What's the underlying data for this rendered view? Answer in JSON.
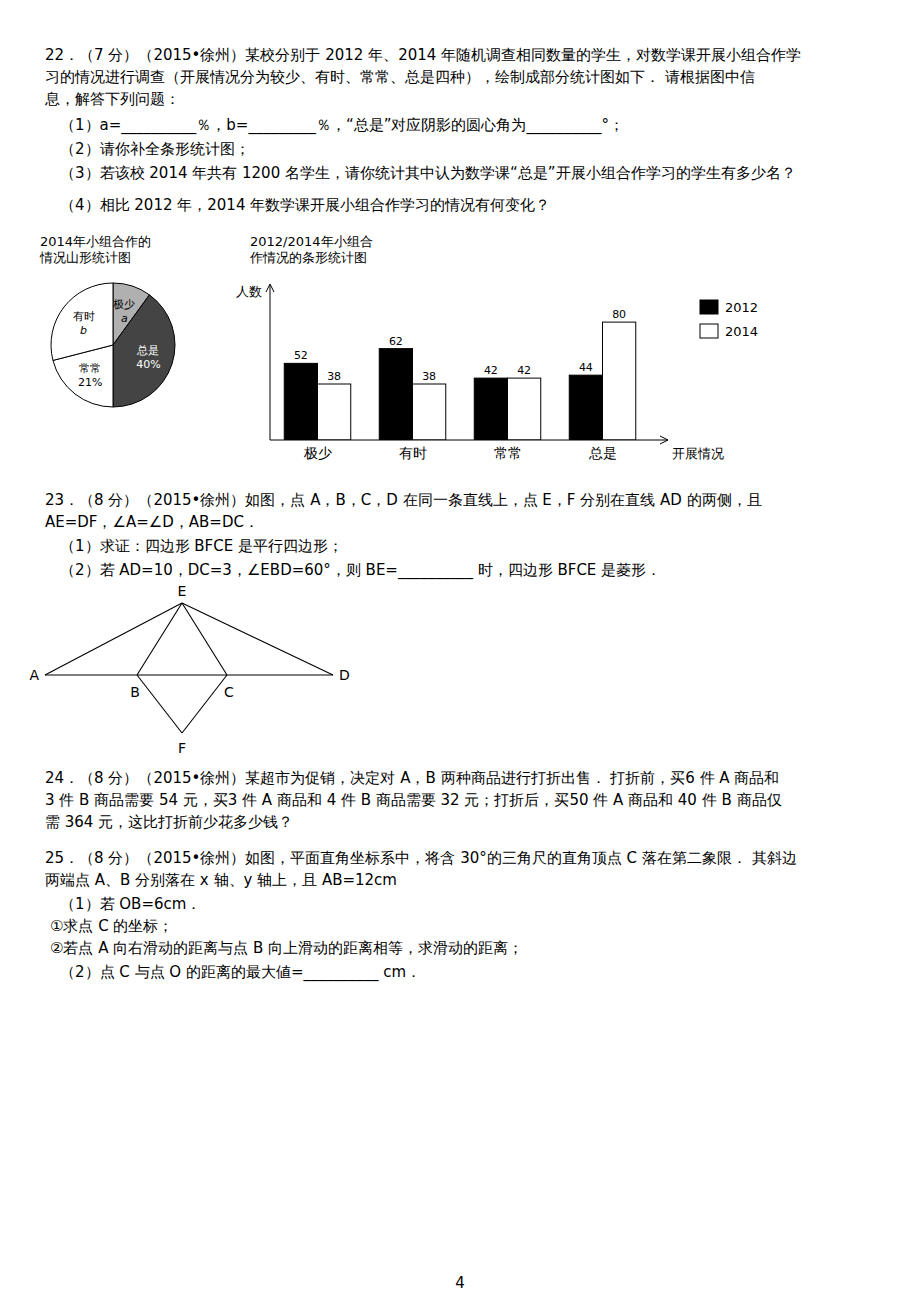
{
  "page_text": {
    "q22": [
      "22．（7 分）（2015•徐州）某校分别于 2012 年、2014 年随机调查相同数量的学生，对数学课开展小组合作学",
      "习的情况进行调查（开展情况分为较少、有时、常常、总是四种），绘制成部分统计图如下． 请根据图中信",
      "息，解答下列问题：",
      "（1）a=__________％，b=_________％，“总是”对应阴影的圆心角为__________°；",
      "（2）请你补全条形统计图；",
      "（3）若该校 2014 年共有 1200 名学生，请你统计其中认为数学课“总是”开展小组合作学习的学生有多少名？",
      "（4）相比 2012 年，2014 年数学课开展小组合作学习的情况有何变化？"
    ],
    "q23": [
      "23．（8 分）（2015•徐州）如图，点 A，B，C，D 在同一条直线上，点 E，F 分别在直线 AD 的两侧，且",
      "AE=DF，∠A=∠D，AB=DC．",
      "（1）求证：四边形 BFCE 是平行四边形；",
      "（2）若 AD=10，DC=3，∠EBD=60°，则 BE=__________ 时，四边形 BFCE 是菱形．"
    ],
    "figure_labels": [
      "A",
      "B",
      "C",
      "D",
      "E",
      "F"
    ],
    "q24": [
      "24．（8 分）（2015•徐州）某超市为促销，决定对 A，B 两种商品进行打折出售． 打折前，买6 件 A 商品和",
      "3 件 B 商品需要 54 元，买3 件 A 商品和 4 件 B 商品需要 32 元；打折后，买50 件 A 商品和 40 件 B 商品仅",
      "需 364 元，这比打折前少花多少钱？"
    ],
    "q25": [
      "25．（8 分）（2015•徐州）如图，平面直角坐标系中，将含 30°的三角尺的直角顶点 C 落在第二象限． 其斜边",
      "两端点 A、B 分别落在 x 轴、y 轴上，且 AB=12cm",
      "（1）若 OB=6cm．",
      "①求点 C 的坐标；",
      "②若点 A 向右滑动的距离与点 B 向上滑动的距离相等，求滑动的距离；",
      "（2）点 C 与点 O 的距离的最大値=__________ cm．"
    ],
    "page_number": "4"
  },
  "chart_data": [
    {
      "type": "pie",
      "title": [
        "2014年小组合作的",
        "情况山形统计图"
      ],
      "categories": [
        "极少",
        "总是",
        "常常",
        "有时"
      ],
      "values": [
        10,
        40,
        21,
        29
      ],
      "value_labels": [
        "a",
        "40%",
        "21%",
        "b"
      ],
      "colors": [
        "#b0b0b0",
        "#444444",
        "#ffffff",
        "#ffffff"
      ],
      "data_labels": true
    },
    {
      "type": "bar",
      "title": [
        "2012/2014年小组合",
        "作情况的条形统计图"
      ],
      "x_label": "开展情况",
      "y_label": "人数",
      "categories": [
        "极少",
        "有时",
        "常常",
        "总是"
      ],
      "series": [
        {
          "name": "2012",
          "color": "#000000",
          "values": [
            52,
            62,
            42,
            44
          ]
        },
        {
          "name": "2014",
          "color": "#ffffff",
          "values": [
            38,
            38,
            42,
            80
          ]
        }
      ],
      "ylim": [
        0,
        95
      ],
      "yticks": [],
      "tick_labels": "x",
      "data_labels": true,
      "legend": "right"
    }
  ]
}
